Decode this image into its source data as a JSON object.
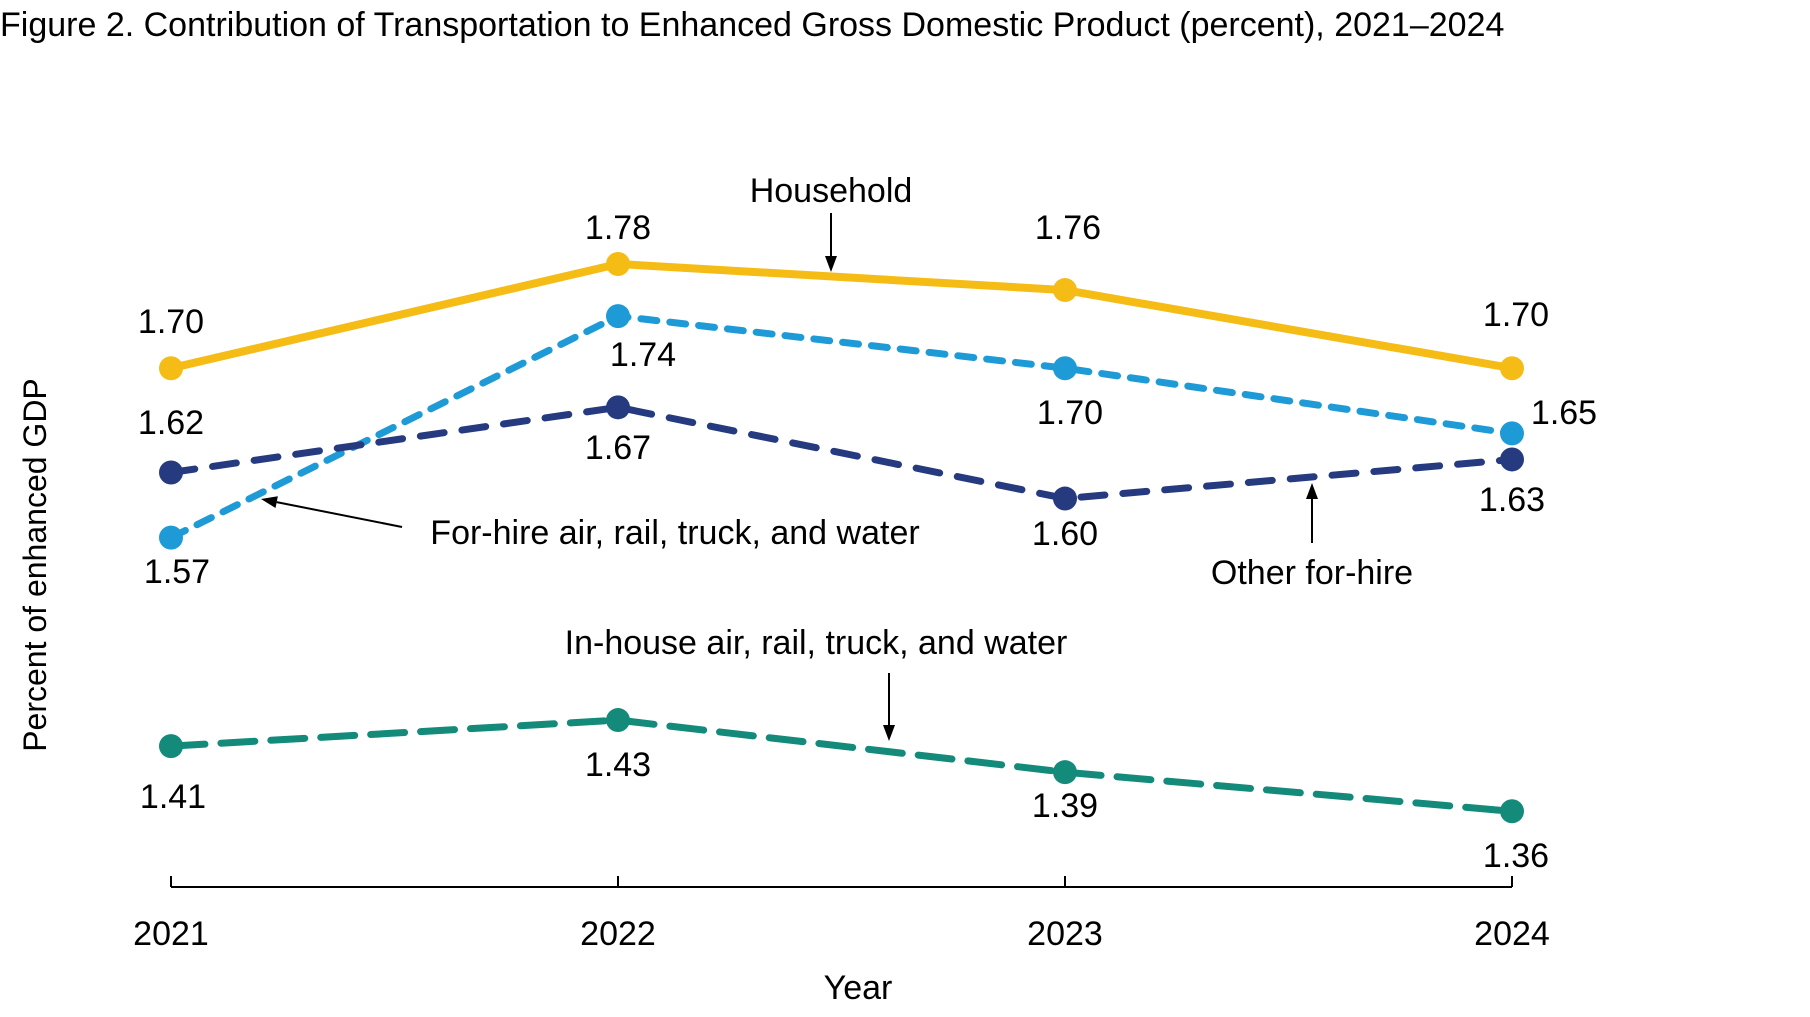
{
  "chart_data": {
    "type": "line",
    "title": "Figure 2. Contribution of Transportation to Enhanced Gross Domestic Product (percent), 2021–2024",
    "xlabel": "Year",
    "ylabel": "Percent of enhanced GDP",
    "categories": [
      "2021",
      "2022",
      "2023",
      "2024"
    ],
    "grid": false,
    "legend": "inline annotations with arrows",
    "series": [
      {
        "name": "Household",
        "values": [
          1.7,
          1.78,
          1.76,
          1.7
        ],
        "color": "#F5BC15",
        "style": "solid"
      },
      {
        "name": "For-hire air, rail, truck, and water",
        "values": [
          1.57,
          1.74,
          1.7,
          1.65
        ],
        "color": "#1E9BD7",
        "style": "short-dash"
      },
      {
        "name": "Other for-hire",
        "values": [
          1.62,
          1.67,
          1.6,
          1.63
        ],
        "color": "#253A7F",
        "style": "dash"
      },
      {
        "name": "In-house air, rail, truck, and water",
        "values": [
          1.41,
          1.43,
          1.39,
          1.36
        ],
        "color": "#138A7A",
        "style": "long-dash"
      }
    ],
    "data_labels": [
      [
        "1.70",
        "1.78",
        "1.76",
        "1.70"
      ],
      [
        "1.57",
        "1.74",
        "1.70",
        "1.65"
      ],
      [
        "1.62",
        "1.67",
        "1.60",
        "1.63"
      ],
      [
        "1.41",
        "1.43",
        "1.39",
        "1.36"
      ]
    ]
  }
}
